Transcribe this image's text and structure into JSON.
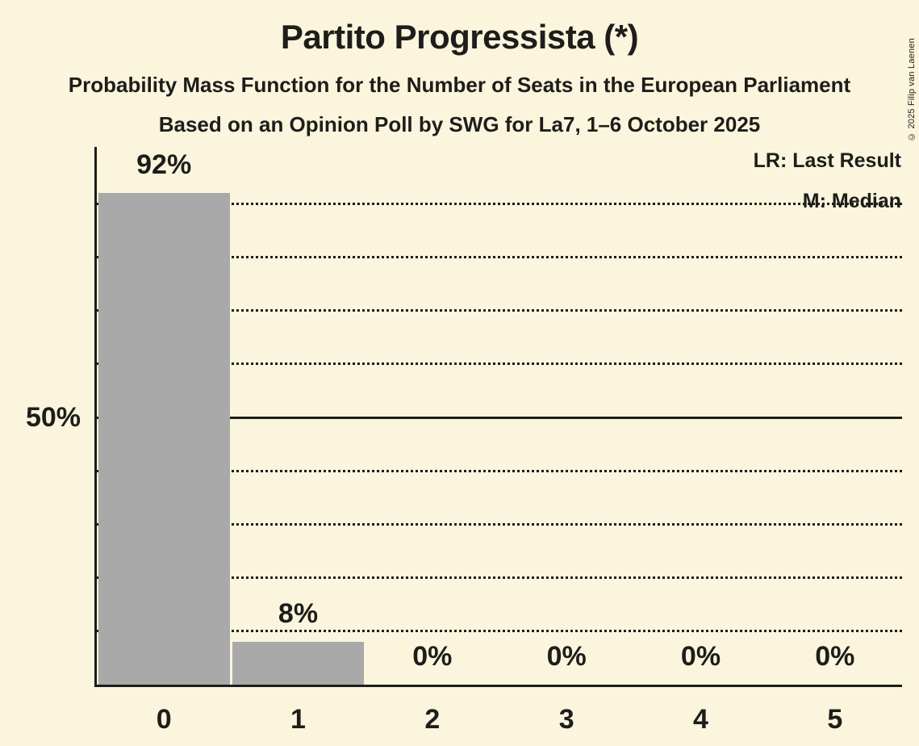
{
  "title": "Partito Progressista (*)",
  "subtitle1": "Probability Mass Function for the Number of Seats in the European Parliament",
  "subtitle2": "Based on an Opinion Poll by SWG for La7, 1–6 October 2025",
  "copyright": "© 2025 Filip van Laenen",
  "legend": {
    "last_result": "LR: Last Result",
    "median": "M: Median"
  },
  "annotations": {
    "median": "M",
    "last_result": "LR"
  },
  "colors": {
    "background": "#FAF5DC",
    "bar": "#A9A9A9",
    "text": "#1D1D1B",
    "bar_annotation_text": "#FAF5DC"
  },
  "chart_data": {
    "type": "bar",
    "title": "Partito Progressista (*)",
    "categories": [
      "0",
      "1",
      "2",
      "3",
      "4",
      "5"
    ],
    "values": [
      92,
      8,
      0,
      0,
      0,
      0
    ],
    "value_labels": [
      "92%",
      "8%",
      "0%",
      "0%",
      "0%",
      "0%"
    ],
    "ylim": [
      0,
      100
    ],
    "y_tick": {
      "value": 50,
      "label": "50%"
    },
    "gridlines_percent": [
      10,
      20,
      30,
      40,
      50,
      60,
      70,
      80,
      90
    ],
    "solid_gridline_percent": 50,
    "grid": "dotted horizontal",
    "legend_position": "top-right",
    "median_bar_index": 0,
    "last_result_bar_index": 0
  }
}
